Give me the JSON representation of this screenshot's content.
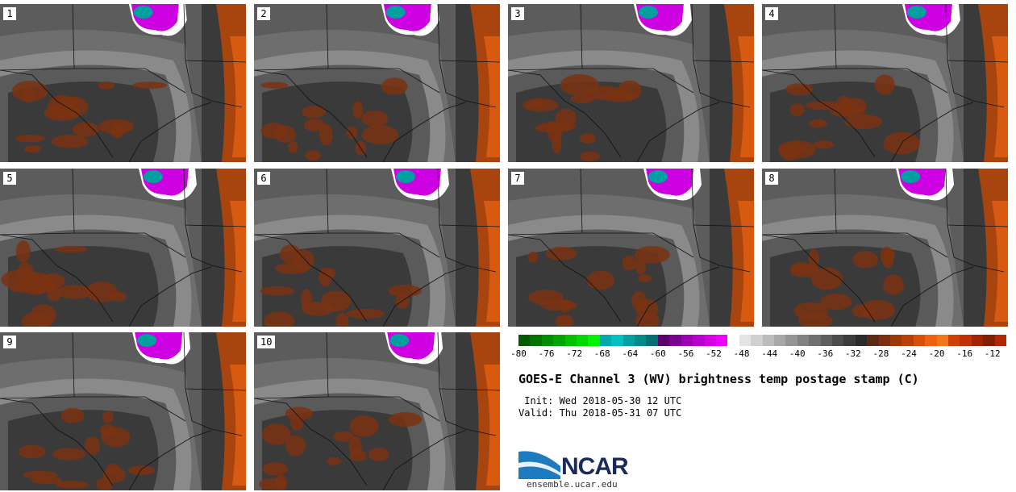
{
  "figure": {
    "title": "GOES-E Channel 3 (WV) brightness temp postage stamp (C)",
    "init_text": " Init: Wed 2018-05-30 12 UTC",
    "valid_text": "Valid: Thu 2018-05-31 07 UTC",
    "source_url": "ensemble.ucar.edu",
    "logo_text": "NCAR"
  },
  "panels": [
    {
      "label": "1"
    },
    {
      "label": "2"
    },
    {
      "label": "3"
    },
    {
      "label": "4"
    },
    {
      "label": "5"
    },
    {
      "label": "6"
    },
    {
      "label": "7"
    },
    {
      "label": "8"
    },
    {
      "label": "9"
    },
    {
      "label": "10"
    }
  ],
  "colorbar": {
    "units": "C",
    "min": -80,
    "max": -10,
    "tick_labels": [
      "-80",
      "-76",
      "-72",
      "-68",
      "-64",
      "-60",
      "-56",
      "-52",
      "-48",
      "-44",
      "-40",
      "-36",
      "-32",
      "-28",
      "-24",
      "-20",
      "-16",
      "-12"
    ],
    "colors": [
      "#005a00",
      "#007300",
      "#008d00",
      "#00a600",
      "#00c000",
      "#00d900",
      "#00f300",
      "#00aaaa",
      "#00c0c0",
      "#00a0a0",
      "#008a8a",
      "#007070",
      "#5a0068",
      "#7a0090",
      "#9a00b0",
      "#b800cc",
      "#d400e4",
      "#ee00ff",
      "#ffffff",
      "#e4e4e4",
      "#d0d0d0",
      "#bcbcbc",
      "#a8a8a8",
      "#959595",
      "#828282",
      "#707070",
      "#5e5e5e",
      "#4c4c4c",
      "#3c3c3c",
      "#2c2c2c",
      "#5a2a14",
      "#7a3010",
      "#9a3808",
      "#b84008",
      "#d85008",
      "#f06010",
      "#f07818",
      "#d04000",
      "#c03000",
      "#a02400",
      "#802000",
      "#b02808"
    ]
  }
}
